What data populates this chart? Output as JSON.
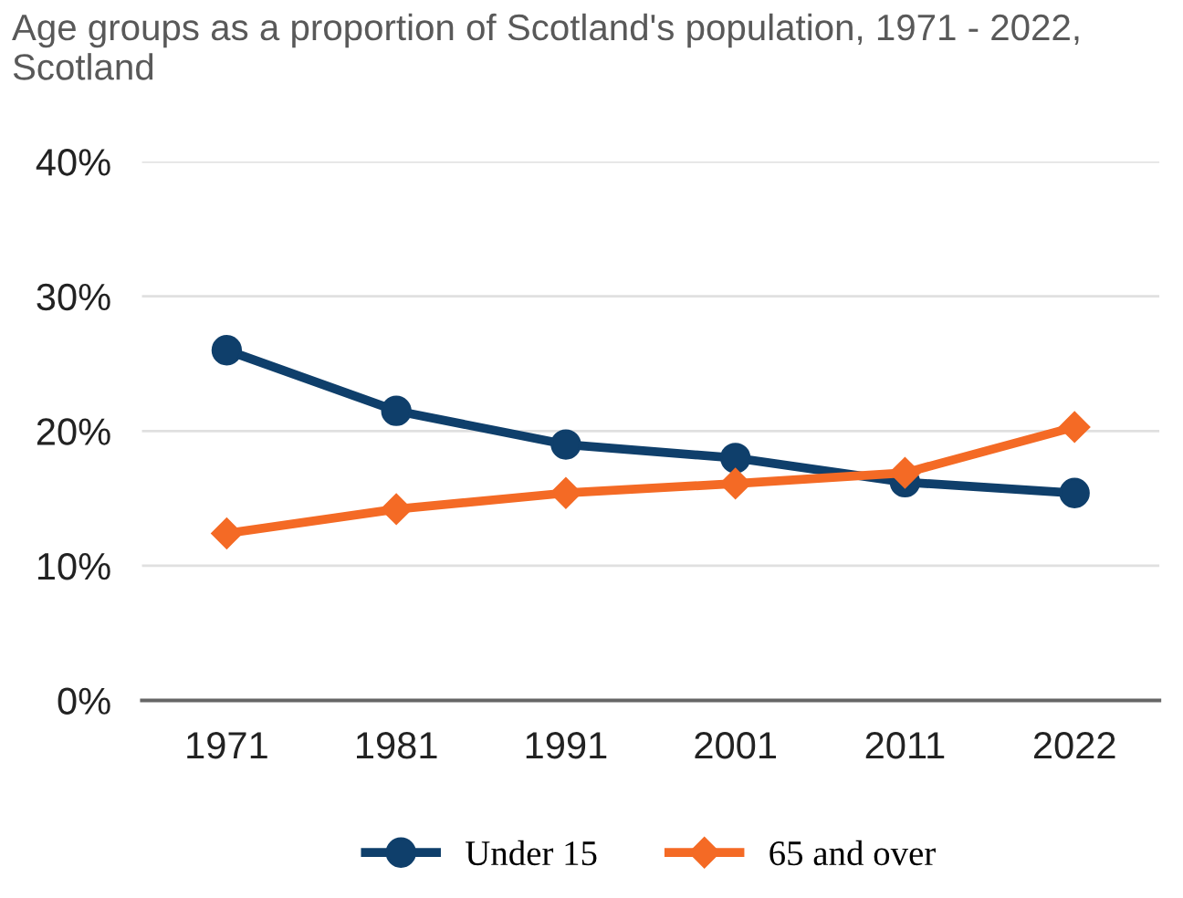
{
  "chart_data": {
    "type": "line",
    "title": "Age groups as a proportion of Scotland's population, 1971 - 2022, Scotland",
    "categories": [
      "1971",
      "1981",
      "1991",
      "2001",
      "2011",
      "2022"
    ],
    "series": [
      {
        "name": "Under 15",
        "color": "#0f3f6b",
        "marker": "circle",
        "values": [
          26.0,
          21.5,
          19.0,
          18.0,
          16.2,
          15.4
        ]
      },
      {
        "name": "65 and over",
        "color": "#f46a25",
        "marker": "diamond",
        "values": [
          12.4,
          14.2,
          15.4,
          16.1,
          16.9,
          20.3
        ]
      }
    ],
    "ylim": [
      0,
      40
    ],
    "yticks": [
      {
        "value": 0,
        "label": "0%"
      },
      {
        "value": 10,
        "label": "10%"
      },
      {
        "value": 20,
        "label": "20%"
      },
      {
        "value": 30,
        "label": "30%"
      },
      {
        "value": 40,
        "label": "40%"
      }
    ],
    "grid": "y",
    "legend": "bottom",
    "line_style": "solid"
  }
}
